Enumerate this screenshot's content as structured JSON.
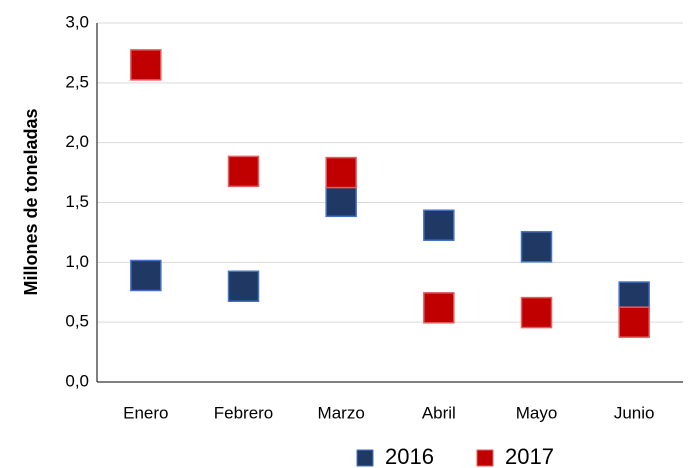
{
  "chart_data": {
    "type": "scatter",
    "ylabel": "Millones de toneladas",
    "categories": [
      "Enero",
      "Febrero",
      "Marzo",
      "Abril",
      "Mayo",
      "Junio"
    ],
    "series": [
      {
        "name": "2016",
        "color": "#1f3864",
        "values": [
          0.89,
          0.8,
          1.51,
          1.31,
          1.13,
          0.71
        ]
      },
      {
        "name": "2017",
        "color": "#c00000",
        "values": [
          2.65,
          1.76,
          1.75,
          0.62,
          0.58,
          0.5
        ]
      }
    ],
    "ylim": [
      0,
      3
    ],
    "yticks": [
      {
        "value": 0,
        "label": "0,0"
      },
      {
        "value": 0.5,
        "label": "0,5"
      },
      {
        "value": 1,
        "label": "1,0"
      },
      {
        "value": 1.5,
        "label": "1,5"
      },
      {
        "value": 2,
        "label": "2,0"
      },
      {
        "value": 2.5,
        "label": "2,5"
      },
      {
        "value": 3,
        "label": "3,0"
      }
    ],
    "grid": true,
    "legend": "bottom"
  }
}
